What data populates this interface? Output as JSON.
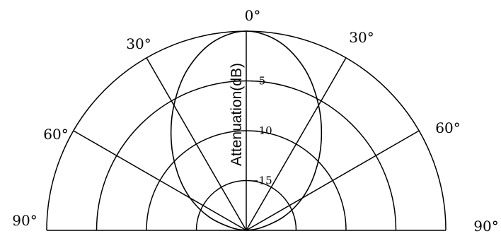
{
  "chart_data": {
    "type": "polar",
    "ylabel": "Attenuation(dB)",
    "angle_labels": [
      "90°",
      "60°",
      "30°",
      "0°",
      "30°",
      "60°",
      "90°"
    ],
    "angle_values_deg": [
      -90,
      -60,
      -30,
      0,
      30,
      60,
      90
    ],
    "radial_range_db": [
      -20,
      0
    ],
    "radial_ticks": [
      {
        "value": -5,
        "label": "−5"
      },
      {
        "value": -10,
        "label": "−10"
      },
      {
        "value": -15,
        "label": "−15"
      }
    ],
    "grid": true,
    "series": [
      {
        "angles_deg": [
          0,
          10,
          20,
          30,
          40,
          50,
          60,
          70,
          80,
          90
        ],
        "attenuation_db": [
          0,
          -0.8,
          -2.8,
          -5.5,
          -8.3,
          -11,
          -13.5,
          -16,
          -18.5,
          -20
        ]
      }
    ]
  }
}
